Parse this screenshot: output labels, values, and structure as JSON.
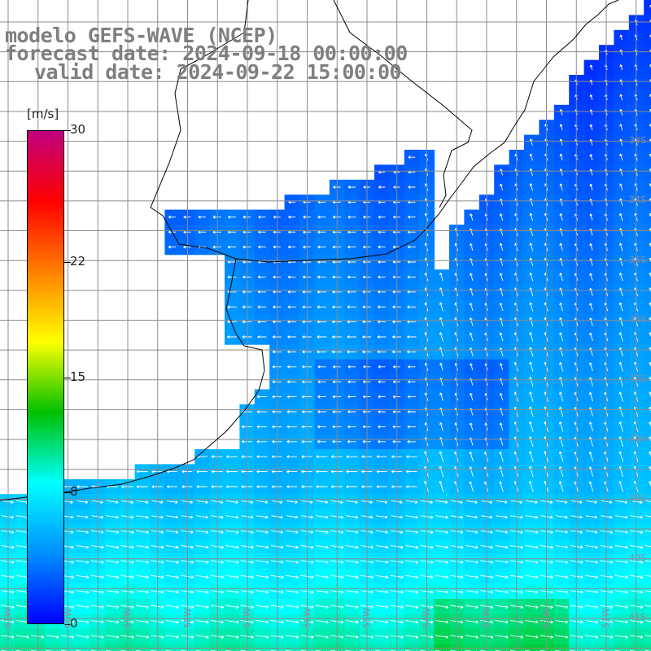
{
  "title": {
    "line1": "modelo GEFS-WAVE (NCEP)",
    "line2": "forecast date: 2024-09-18 00:00:00",
    "line3": "valid date: 2024-09-22 15:00:00"
  },
  "colorbar": {
    "unit": "[m/s]",
    "min": 0,
    "max": 30,
    "ticks": [
      "30",
      "22",
      "15",
      "8",
      "0"
    ],
    "tick_values": [
      30,
      22,
      15,
      8,
      0
    ],
    "stops": [
      "#0000ff",
      "#0090ff",
      "#00ffff",
      "#00c000",
      "#ffff00",
      "#ff8000",
      "#ff0000",
      "#c00080"
    ]
  },
  "lat_labels": [
    {
      "text": "33S",
      "lat": -33
    },
    {
      "text": "34S",
      "lat": -34
    },
    {
      "text": "35S",
      "lat": -35
    },
    {
      "text": "36S",
      "lat": -36
    },
    {
      "text": "37S",
      "lat": -37
    },
    {
      "text": "38S",
      "lat": -38
    },
    {
      "text": "39S",
      "lat": -39
    },
    {
      "text": "40S",
      "lat": -40
    },
    {
      "text": "41S",
      "lat": -41
    }
  ],
  "lon_labels": [
    {
      "text": "61W",
      "lon": -61
    },
    {
      "text": "60W",
      "lon": -60
    },
    {
      "text": "59W",
      "lon": -59
    },
    {
      "text": "58W",
      "lon": -58
    },
    {
      "text": "57W",
      "lon": -57
    },
    {
      "text": "56W",
      "lon": -56
    },
    {
      "text": "55W",
      "lon": -55
    },
    {
      "text": "54W",
      "lon": -54
    },
    {
      "text": "53W",
      "lon": -53
    },
    {
      "text": "52W",
      "lon": -52
    },
    {
      "text": "51W",
      "lon": -51
    }
  ],
  "colors": {
    "land": "#ffffff",
    "grid": "#8c8c8c",
    "coast": "#000000",
    "arrow": "#ffffff",
    "title": "#7f7f7f"
  }
}
